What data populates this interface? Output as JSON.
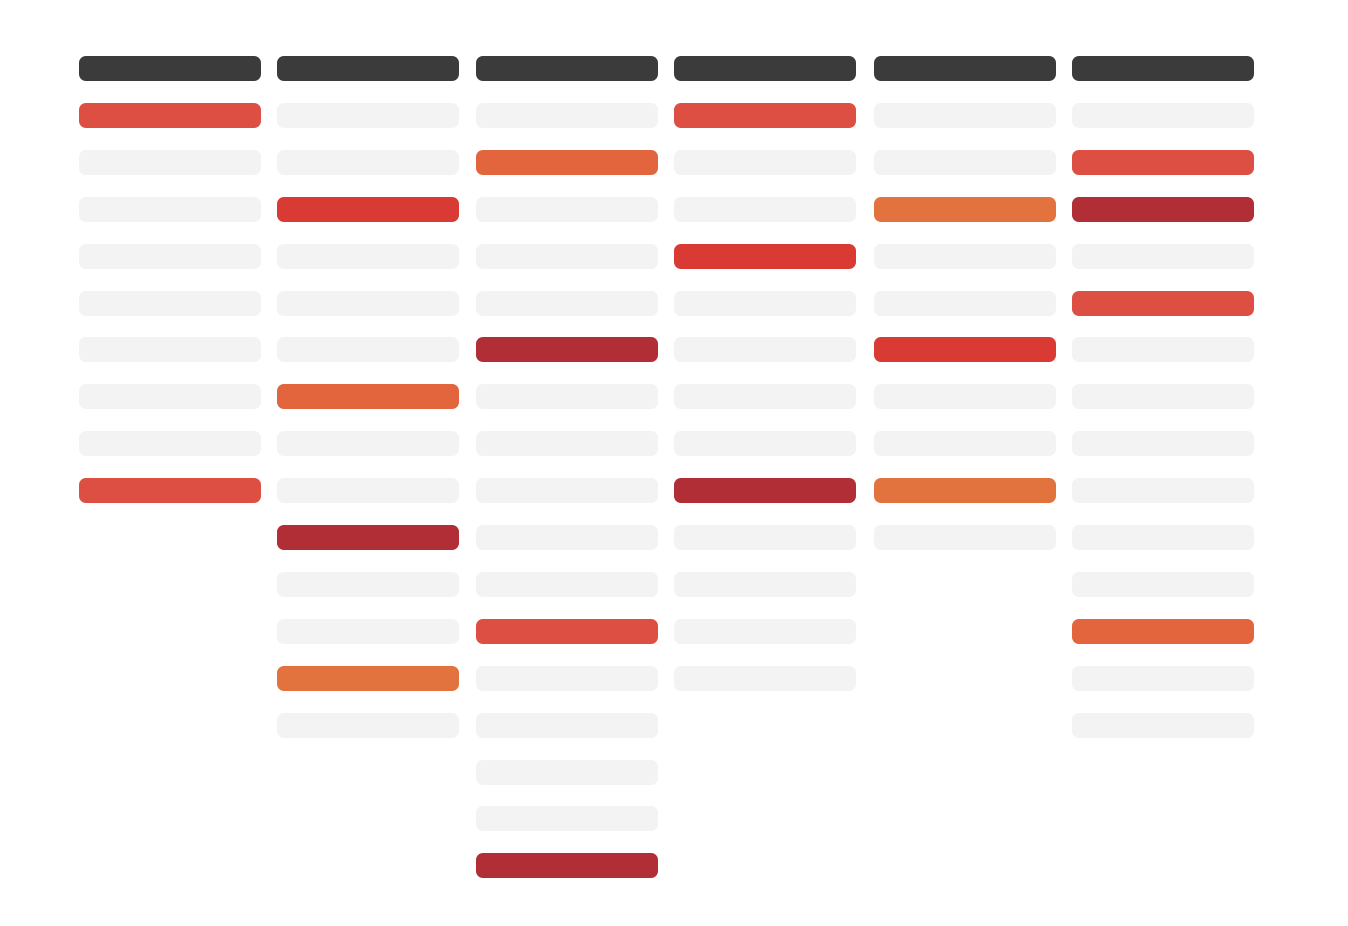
{
  "palette": {
    "header": "#3b3b3b",
    "empty": "#f3f3f3",
    "coral": "#dd4f42",
    "red": "#d93a34",
    "dark-red": "#b12e36",
    "orange": "#e2653d",
    "light-orange": "#e3733e"
  },
  "columns": [
    {
      "id": "col-1",
      "cells": [
        "header",
        "coral",
        "empty",
        "empty",
        "empty",
        "empty",
        "empty",
        "empty",
        "empty",
        "coral"
      ]
    },
    {
      "id": "col-2",
      "cells": [
        "header",
        "empty",
        "empty",
        "red",
        "empty",
        "empty",
        "empty",
        "orange",
        "empty",
        "empty",
        "dark-red",
        "empty",
        "empty",
        "light-orange",
        "empty"
      ]
    },
    {
      "id": "col-3",
      "cells": [
        "header",
        "empty",
        "orange",
        "empty",
        "empty",
        "empty",
        "dark-red",
        "empty",
        "empty",
        "empty",
        "empty",
        "empty",
        "coral",
        "empty",
        "empty",
        "empty",
        "empty",
        "dark-red"
      ]
    },
    {
      "id": "col-4",
      "cells": [
        "header",
        "coral",
        "empty",
        "empty",
        "red",
        "empty",
        "empty",
        "empty",
        "empty",
        "dark-red",
        "empty",
        "empty",
        "empty",
        "empty"
      ]
    },
    {
      "id": "col-5",
      "cells": [
        "header",
        "empty",
        "empty",
        "light-orange",
        "empty",
        "empty",
        "red",
        "empty",
        "empty",
        "light-orange",
        "empty"
      ]
    },
    {
      "id": "col-6",
      "cells": [
        "header",
        "empty",
        "coral",
        "dark-red",
        "empty",
        "coral",
        "empty",
        "empty",
        "empty",
        "empty",
        "empty",
        "empty",
        "orange",
        "empty",
        "empty"
      ]
    }
  ]
}
